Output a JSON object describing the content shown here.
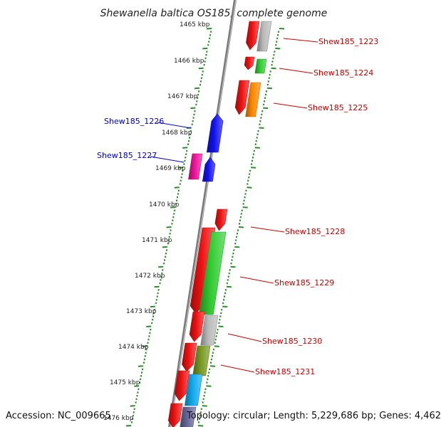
{
  "title": "Shewanella baltica OS185, complete genome",
  "kbp_ticks": [
    "1465 kbp",
    "1466 kbp",
    "1467 kbp",
    "1468 kbp",
    "1469 kbp",
    "1470 kbp",
    "1471 kbp",
    "1472 kbp",
    "1473 kbp",
    "1474 kbp",
    "1475 kbp",
    "1476 kbp"
  ],
  "forward_labels": [
    "Shew185_1226",
    "Shew185_1227"
  ],
  "reverse_labels": [
    "Shew185_1223",
    "Shew185_1224",
    "Shew185_1225",
    "Shew185_1228",
    "Shew185_1229",
    "Shew185_1230",
    "Shew185_1231"
  ],
  "footer": {
    "accession": "Accession: NC_009665",
    "topology": "Topology: circular; Length: 5,229,686 bp; Genes: 4,462"
  },
  "colors": {
    "backbone": "#8c8c8c",
    "tick_green": "#2e8b2e",
    "forward_label": "#0000cc",
    "reverse_label": "#cc0000",
    "red": "#ee1111",
    "grey": "#bbbbbb",
    "green": "#33cc33",
    "orange": "#ff8800",
    "blue": "#1111ee",
    "magenta": "#ee1199",
    "olive": "#779922",
    "cyan": "#11aaee",
    "purple": "#666699"
  }
}
